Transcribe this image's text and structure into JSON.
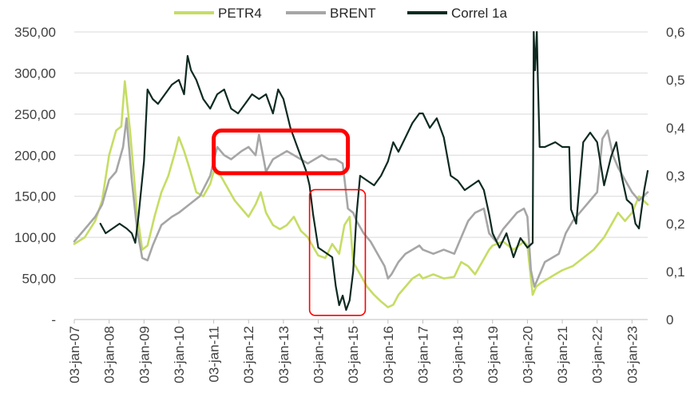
{
  "chart_data": {
    "type": "line",
    "title": "",
    "xlabel": "",
    "ylabel_left": "",
    "ylabel_right": "",
    "x_categories": [
      "03-jan-07",
      "03-jan-08",
      "03-jan-09",
      "03-jan-10",
      "03-jan-11",
      "03-jan-12",
      "03-jan-13",
      "03-jan-14",
      "03-jan-15",
      "03-jan-16",
      "03-jan-17",
      "03-jan-18",
      "03-jan-19",
      "03-jan-20",
      "03-jan-21",
      "03-jan-22",
      "03-jan-23"
    ],
    "x_range": [
      2007.0,
      2023.45
    ],
    "y_left": {
      "ylim": [
        0,
        350
      ],
      "ticks": [
        0,
        50,
        100,
        150,
        200,
        250,
        300,
        350
      ],
      "tick_labels": [
        "-",
        "50,00",
        "100,00",
        "150,00",
        "200,00",
        "250,00",
        "300,00",
        "350,00"
      ]
    },
    "y_right": {
      "ylim": [
        0,
        0.6
      ],
      "ticks": [
        0,
        0.1,
        0.2,
        0.3,
        0.4,
        0.5,
        0.6
      ],
      "tick_labels": [
        "0",
        "0,1",
        "0,2",
        "0,3",
        "0,4",
        "0,5",
        "0,6"
      ]
    },
    "grid": "horizontal",
    "legend": {
      "position": "top-center",
      "entries": [
        {
          "label": "PETR4",
          "color": "#c5dd64"
        },
        {
          "label": "BRENT",
          "color": "#a6a6a6"
        },
        {
          "label": "Correl 1a",
          "color": "#0e2a20"
        }
      ]
    },
    "series": [
      {
        "name": "PETR4",
        "axis": "left",
        "color": "#c5dd64",
        "x": [
          2007.0,
          2007.3,
          2007.6,
          2007.8,
          2008.0,
          2008.2,
          2008.35,
          2008.45,
          2008.6,
          2008.8,
          2008.95,
          2009.1,
          2009.3,
          2009.5,
          2009.7,
          2009.9,
          2010.0,
          2010.15,
          2010.3,
          2010.5,
          2010.7,
          2010.9,
          2011.0,
          2011.2,
          2011.4,
          2011.6,
          2011.8,
          2012.0,
          2012.2,
          2012.35,
          2012.5,
          2012.7,
          2012.9,
          2013.1,
          2013.3,
          2013.5,
          2013.7,
          2013.9,
          2014.0,
          2014.2,
          2014.4,
          2014.6,
          2014.75,
          2014.9,
          2015.0,
          2015.2,
          2015.4,
          2015.6,
          2015.8,
          2016.0,
          2016.15,
          2016.3,
          2016.5,
          2016.7,
          2016.9,
          2017.0,
          2017.3,
          2017.6,
          2017.9,
          2018.1,
          2018.3,
          2018.5,
          2018.7,
          2018.9,
          2019.0,
          2019.3,
          2019.6,
          2019.9,
          2020.0,
          2020.15,
          2020.25,
          2020.4,
          2020.6,
          2020.8,
          2021.0,
          2021.3,
          2021.6,
          2021.9,
          2022.0,
          2022.2,
          2022.4,
          2022.6,
          2022.8,
          2023.0,
          2023.2,
          2023.45
        ],
        "y": [
          92,
          100,
          120,
          145,
          200,
          230,
          235,
          290,
          230,
          130,
          85,
          90,
          125,
          155,
          175,
          205,
          222,
          205,
          185,
          155,
          150,
          165,
          180,
          175,
          160,
          145,
          135,
          125,
          140,
          155,
          130,
          115,
          110,
          115,
          125,
          108,
          100,
          85,
          78,
          75,
          92,
          80,
          115,
          125,
          70,
          55,
          40,
          30,
          22,
          15,
          18,
          30,
          40,
          50,
          55,
          50,
          55,
          50,
          52,
          70,
          65,
          55,
          70,
          85,
          90,
          95,
          85,
          95,
          90,
          30,
          40,
          45,
          50,
          55,
          60,
          65,
          75,
          85,
          90,
          100,
          115,
          130,
          120,
          130,
          150,
          140
        ]
      },
      {
        "name": "BRENT",
        "axis": "left",
        "color": "#a6a6a6",
        "x": [
          2007.0,
          2007.3,
          2007.6,
          2007.8,
          2008.0,
          2008.2,
          2008.4,
          2008.5,
          2008.65,
          2008.8,
          2008.95,
          2009.1,
          2009.25,
          2009.5,
          2009.8,
          2010.0,
          2010.3,
          2010.6,
          2010.9,
          2011.1,
          2011.3,
          2011.5,
          2011.8,
          2012.0,
          2012.2,
          2012.3,
          2012.5,
          2012.7,
          2012.9,
          2013.1,
          2013.3,
          2013.5,
          2013.7,
          2013.9,
          2014.1,
          2014.3,
          2014.5,
          2014.7,
          2014.85,
          2015.0,
          2015.1,
          2015.3,
          2015.5,
          2015.7,
          2015.9,
          2016.0,
          2016.1,
          2016.3,
          2016.5,
          2016.7,
          2016.9,
          2017.0,
          2017.3,
          2017.6,
          2017.9,
          2018.1,
          2018.3,
          2018.5,
          2018.75,
          2018.9,
          2019.1,
          2019.3,
          2019.5,
          2019.7,
          2019.9,
          2020.0,
          2020.1,
          2020.2,
          2020.3,
          2020.5,
          2020.7,
          2020.9,
          2021.1,
          2021.3,
          2021.5,
          2021.8,
          2022.0,
          2022.15,
          2022.3,
          2022.45,
          2022.6,
          2022.8,
          2023.0,
          2023.2,
          2023.45
        ],
        "y": [
          95,
          110,
          125,
          140,
          170,
          180,
          210,
          245,
          170,
          110,
          75,
          72,
          90,
          115,
          125,
          130,
          140,
          150,
          175,
          210,
          200,
          195,
          205,
          210,
          200,
          225,
          180,
          195,
          200,
          205,
          200,
          195,
          190,
          195,
          200,
          195,
          195,
          190,
          135,
          130,
          120,
          105,
          95,
          80,
          65,
          50,
          55,
          70,
          80,
          85,
          90,
          85,
          80,
          85,
          80,
          100,
          120,
          130,
          135,
          105,
          95,
          110,
          120,
          130,
          135,
          125,
          60,
          40,
          50,
          70,
          75,
          80,
          105,
          120,
          130,
          145,
          155,
          220,
          230,
          200,
          185,
          170,
          155,
          145,
          155
        ]
      },
      {
        "name": "Correl 1a",
        "axis": "right",
        "color": "#0e2a20",
        "x": [
          2007.75,
          2007.9,
          2008.1,
          2008.3,
          2008.5,
          2008.65,
          2008.75,
          2008.85,
          2009.0,
          2009.1,
          2009.25,
          2009.4,
          2009.6,
          2009.8,
          2010.0,
          2010.15,
          2010.25,
          2010.35,
          2010.5,
          2010.7,
          2010.9,
          2011.1,
          2011.3,
          2011.5,
          2011.7,
          2011.9,
          2012.1,
          2012.3,
          2012.5,
          2012.7,
          2012.85,
          2013.0,
          2013.2,
          2013.4,
          2013.55,
          2013.65,
          2013.75,
          2013.85,
          2014.0,
          2014.2,
          2014.4,
          2014.5,
          2014.6,
          2014.7,
          2014.8,
          2014.9,
          2015.0,
          2015.1,
          2015.2,
          2015.4,
          2015.6,
          2015.8,
          2016.0,
          2016.15,
          2016.3,
          2016.5,
          2016.7,
          2016.9,
          2017.0,
          2017.2,
          2017.4,
          2017.6,
          2017.8,
          2018.0,
          2018.2,
          2018.4,
          2018.6,
          2018.75,
          2018.9,
          2019.0,
          2019.2,
          2019.4,
          2019.6,
          2019.8,
          2020.0,
          2020.15,
          2020.18,
          2020.22,
          2020.27,
          2020.3,
          2020.35,
          2020.5,
          2020.8,
          2021.0,
          2021.2,
          2021.25,
          2021.4,
          2021.6,
          2021.8,
          2022.0,
          2022.2,
          2022.4,
          2022.55,
          2022.7,
          2022.85,
          2023.0,
          2023.1,
          2023.2,
          2023.35,
          2023.45
        ],
        "y": [
          0.2,
          0.18,
          0.19,
          0.2,
          0.19,
          0.18,
          0.16,
          0.22,
          0.33,
          0.48,
          0.46,
          0.45,
          0.47,
          0.49,
          0.5,
          0.47,
          0.55,
          0.52,
          0.5,
          0.46,
          0.44,
          0.47,
          0.48,
          0.44,
          0.43,
          0.45,
          0.47,
          0.46,
          0.47,
          0.43,
          0.48,
          0.46,
          0.4,
          0.36,
          0.33,
          0.31,
          0.28,
          0.22,
          0.15,
          0.14,
          0.13,
          0.07,
          0.03,
          0.05,
          0.02,
          0.04,
          0.1,
          0.22,
          0.3,
          0.29,
          0.28,
          0.3,
          0.33,
          0.37,
          0.35,
          0.38,
          0.41,
          0.43,
          0.43,
          0.4,
          0.42,
          0.38,
          0.3,
          0.29,
          0.27,
          0.28,
          0.29,
          0.27,
          0.22,
          0.18,
          0.15,
          0.18,
          0.13,
          0.17,
          0.15,
          0.16,
          0.6,
          0.52,
          0.6,
          0.5,
          0.36,
          0.36,
          0.37,
          0.36,
          0.36,
          0.23,
          0.2,
          0.37,
          0.39,
          0.37,
          0.28,
          0.34,
          0.37,
          0.3,
          0.25,
          0.24,
          0.2,
          0.19,
          0.27,
          0.31
        ]
      }
    ],
    "annotations": [
      {
        "shape": "rounded-rect",
        "color": "#ff0000",
        "style": "thick",
        "x": [
          2011.0,
          2014.85
        ],
        "y_left": [
          178,
          230
        ]
      },
      {
        "shape": "rounded-rect",
        "color": "#ff0000",
        "style": "thin",
        "x": [
          2013.75,
          2015.35
        ],
        "y_left": [
          5,
          158
        ]
      }
    ]
  }
}
